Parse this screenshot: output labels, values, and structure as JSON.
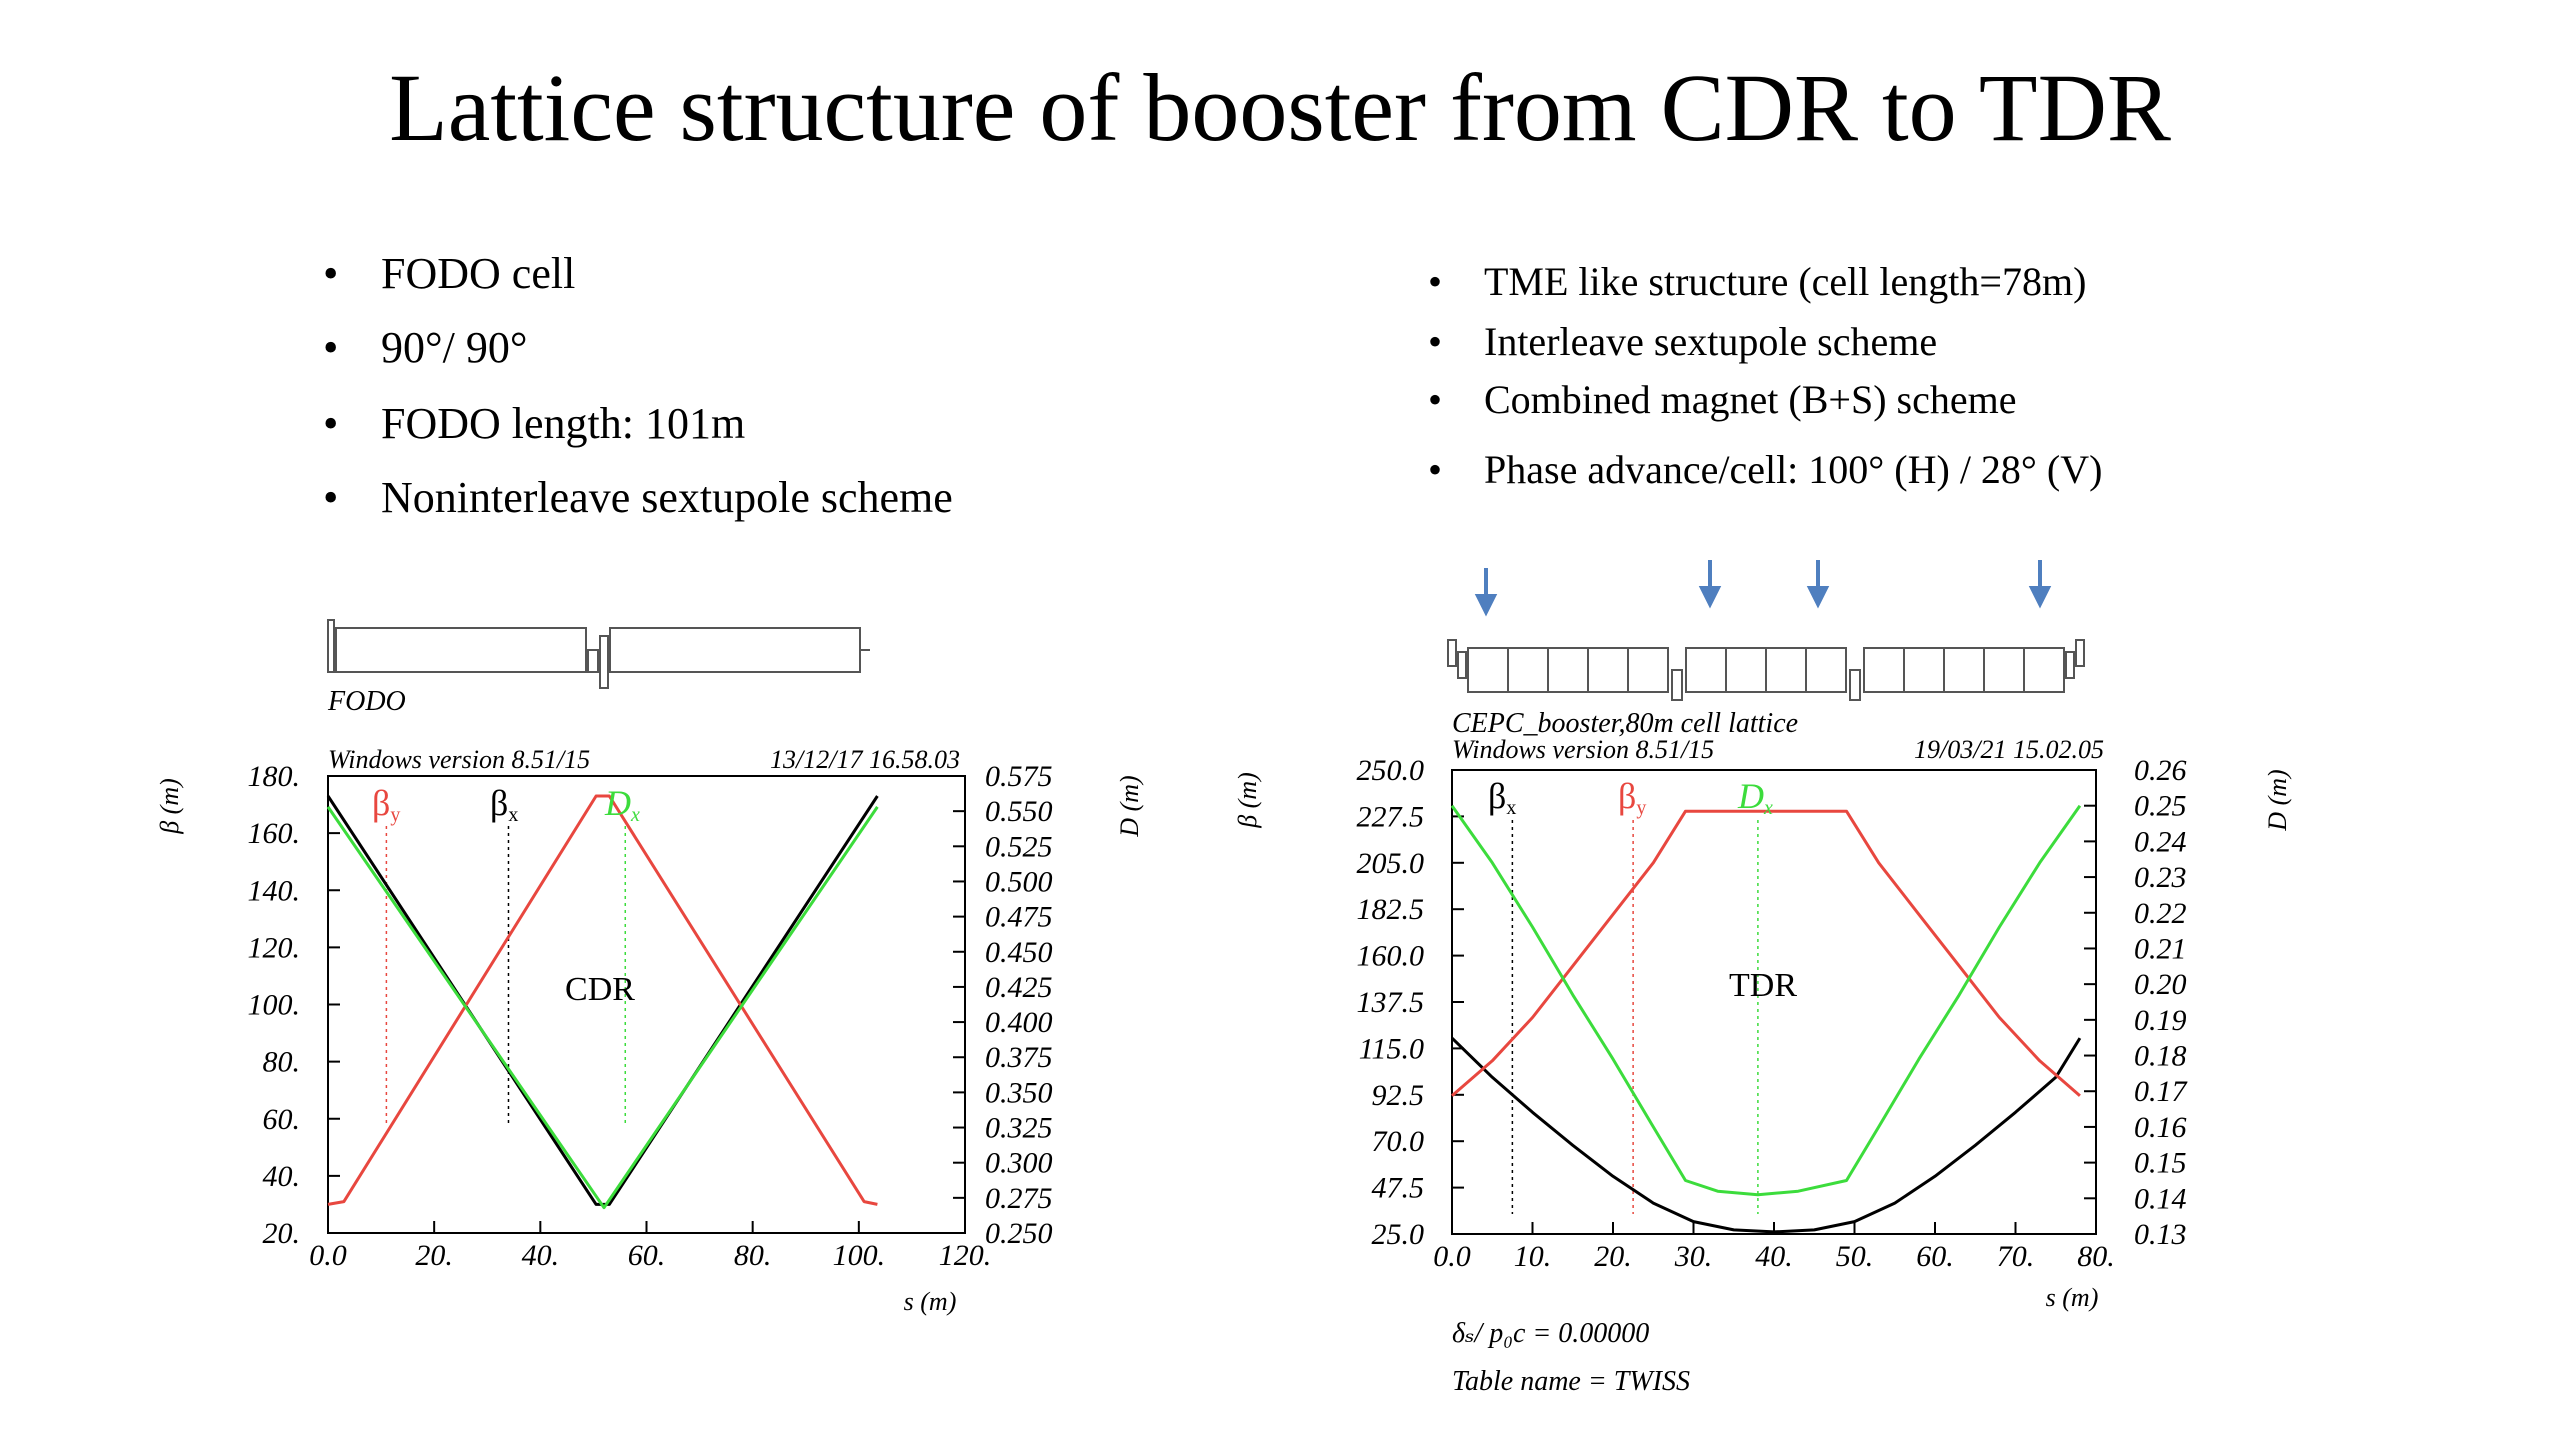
{
  "slide": {
    "title": "Lattice structure of booster from CDR to TDR"
  },
  "left_bullets": [
    "FODO cell",
    "90°/ 90°",
    "FODO length: 101m",
    "Noninterleave sextupole scheme"
  ],
  "right_bullets": [
    "TME like structure (cell length=78m)",
    "Interleave sextupole scheme",
    "Combined magnet (B+S) scheme",
    "Phase advance/cell: 100° (H) / 28° (V)"
  ],
  "colors": {
    "beta_x": "#000000",
    "beta_y": "#e8473f",
    "dx": "#3cdc3c",
    "marker_arrow": "#4f7fbf"
  },
  "chart_data": [
    {
      "type": "line",
      "lattice_label": "FODO",
      "header_left": "Windows version 8.51/15",
      "header_right": "13/12/17  16.58.03",
      "inner_label": "CDR",
      "xlabel": "s (m)",
      "ylabel": "β (m)",
      "y2label": "D (m)",
      "xlim": [
        0,
        120
      ],
      "ylim": [
        20,
        180
      ],
      "y2lim": [
        0.25,
        0.575
      ],
      "x_ticks": [
        "0.0",
        "20.",
        "40.",
        "60.",
        "80.",
        "100.",
        "120."
      ],
      "y_ticks": [
        "20.",
        "40.",
        "60.",
        "80.",
        "100.",
        "120.",
        "140.",
        "160.",
        "180."
      ],
      "y2_ticks": [
        "0.250",
        "0.275",
        "0.300",
        "0.325",
        "0.350",
        "0.375",
        "0.400",
        "0.425",
        "0.450",
        "0.475",
        "0.500",
        "0.525",
        "0.550",
        "0.575"
      ],
      "legend": [
        {
          "id": "beta_y",
          "label": "β",
          "sub": "y"
        },
        {
          "id": "beta_x",
          "label": "β",
          "sub": "x"
        },
        {
          "id": "dx",
          "label": "D",
          "sub": "x"
        }
      ],
      "markers_x": [
        11,
        34,
        56
      ],
      "series": [
        {
          "id": "beta_x",
          "axis": "left",
          "x": [
            0,
            50.5,
            53,
            103.5
          ],
          "values": [
            173,
            30,
            30,
            173
          ]
        },
        {
          "id": "beta_y",
          "axis": "left",
          "x": [
            0,
            3,
            50.5,
            53,
            101,
            103.5
          ],
          "values": [
            30,
            31,
            173,
            173,
            31,
            30
          ]
        },
        {
          "id": "dx",
          "axis": "right",
          "x": [
            0,
            52,
            103.5
          ],
          "values": [
            0.553,
            0.268,
            0.553
          ]
        }
      ]
    },
    {
      "type": "line",
      "lattice_label": "CEPC_booster,80m cell lattice",
      "header_left": "Windows version 8.51/15",
      "header_right": "19/03/21  15.02.05",
      "inner_label": "TDR",
      "footer_lines": [
        "δₛ/ p₀c   =     0.00000",
        "Table name = TWISS"
      ],
      "xlabel": "s (m)",
      "ylabel": "β (m)",
      "y2label": "D (m)",
      "xlim": [
        0,
        80
      ],
      "ylim": [
        25,
        250
      ],
      "y2lim": [
        0.13,
        0.26
      ],
      "x_ticks": [
        "0.0",
        "10.",
        "20.",
        "30.",
        "40.",
        "50.",
        "60.",
        "70.",
        "80."
      ],
      "y_ticks": [
        "25.0",
        "47.5",
        "70.0",
        "92.5",
        "115.0",
        "137.5",
        "160.0",
        "182.5",
        "205.0",
        "227.5",
        "250.0"
      ],
      "y2_ticks": [
        "0.13",
        "0.14",
        "0.15",
        "0.16",
        "0.17",
        "0.18",
        "0.19",
        "0.20",
        "0.21",
        "0.22",
        "0.23",
        "0.24",
        "0.25",
        "0.26"
      ],
      "legend": [
        {
          "id": "beta_x",
          "label": "β",
          "sub": "x"
        },
        {
          "id": "beta_y",
          "label": "β",
          "sub": "y"
        },
        {
          "id": "dx",
          "label": "D",
          "sub": "x"
        }
      ],
      "markers_x": [
        7.5,
        22.5,
        38
      ],
      "series": [
        {
          "id": "beta_x",
          "axis": "left",
          "x": [
            0,
            5,
            10,
            15,
            20,
            25,
            30,
            35,
            40,
            45,
            50,
            55,
            60,
            65,
            70,
            75,
            78
          ],
          "values": [
            120,
            101,
            84,
            68,
            53,
            40,
            31,
            27,
            26,
            27,
            31,
            40,
            53,
            68,
            84,
            101,
            120
          ]
        },
        {
          "id": "beta_y",
          "axis": "left",
          "x": [
            0,
            5,
            10,
            15,
            20,
            25,
            29,
            49,
            53,
            58,
            63,
            68,
            73,
            78
          ],
          "values": [
            92,
            109,
            130,
            155,
            180,
            205,
            230,
            230,
            205,
            180,
            155,
            130,
            109,
            92
          ]
        },
        {
          "id": "dx",
          "axis": "right",
          "x": [
            0,
            5,
            10,
            15,
            20,
            25,
            29,
            33,
            38,
            43,
            49,
            53,
            58,
            63,
            68,
            73,
            78
          ],
          "values": [
            0.25,
            0.234,
            0.216,
            0.197,
            0.179,
            0.16,
            0.145,
            0.142,
            0.141,
            0.142,
            0.145,
            0.16,
            0.179,
            0.197,
            0.216,
            0.234,
            0.25
          ]
        }
      ]
    }
  ]
}
